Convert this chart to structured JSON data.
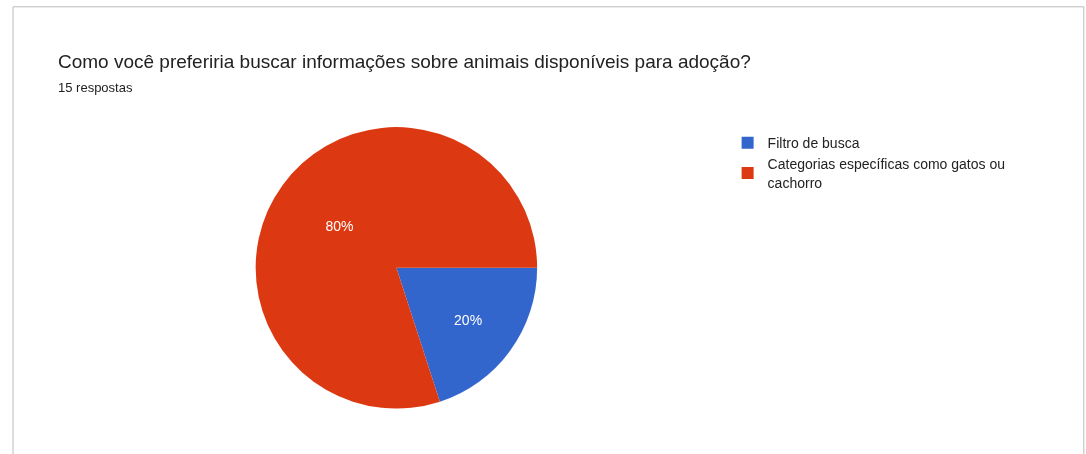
{
  "chart_data": {
    "type": "pie",
    "title": "Como você preferiria buscar informações sobre animais disponíveis para adoção?",
    "subtitle": "15 respostas",
    "categories": [
      "Filtro de busca",
      "Categorias específicas como gatos ou cachorro"
    ],
    "values": [
      20,
      80
    ],
    "value_labels": [
      "20%",
      "80%"
    ],
    "colors": [
      "#3366cc",
      "#dc3912"
    ],
    "legend": "top right"
  }
}
